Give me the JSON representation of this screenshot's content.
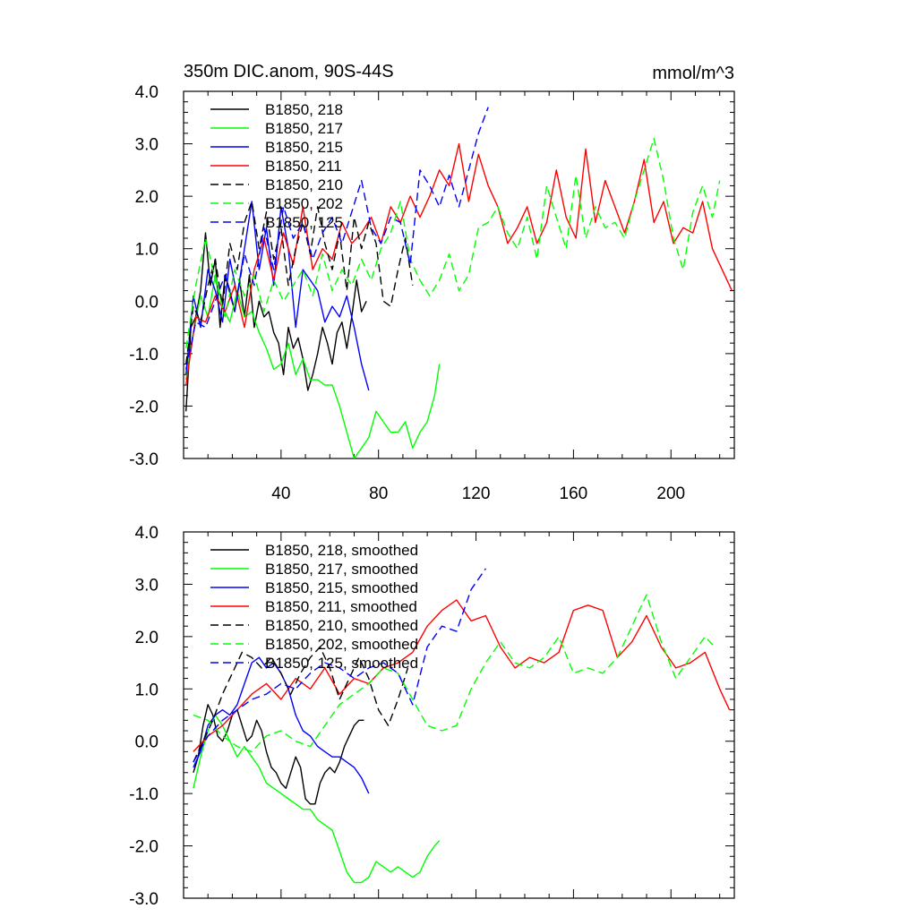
{
  "chart_data": [
    {
      "type": "line",
      "title": "350m DIC.anom, 90S-44S",
      "units": "mmol/m^3",
      "xlim": [
        0,
        226
      ],
      "ylim": [
        -3.0,
        4.0
      ],
      "yticks": [
        "4.0",
        "3.0",
        "2.0",
        "1.0",
        "0.0",
        "-1.0",
        "-2.0",
        "-3.0"
      ],
      "xticks": [
        "40",
        "80",
        "120",
        "160",
        "200"
      ],
      "series": [
        {
          "name": "B1850, 218",
          "color": "#000000",
          "dash": false,
          "x": [
            1,
            3,
            5,
            7,
            9,
            11,
            13,
            15,
            17,
            19,
            21,
            23,
            25,
            27,
            29,
            31,
            33,
            35,
            37,
            39,
            41,
            43,
            45,
            47,
            49,
            51,
            53,
            55,
            57,
            59,
            61,
            63,
            65,
            67,
            69,
            71,
            73,
            75
          ],
          "y": [
            -2.1,
            -0.5,
            -0.3,
            0.2,
            1.3,
            0.3,
            0.8,
            -0.5,
            0.5,
            0.2,
            -0.2,
            0.4,
            -0.3,
            0.5,
            -0.5,
            0.0,
            -0.3,
            -0.2,
            -0.6,
            -0.8,
            -1.4,
            -0.5,
            -0.9,
            -0.7,
            -1.1,
            -1.7,
            -1.4,
            -1.0,
            -0.5,
            -0.8,
            -1.2,
            -0.6,
            -0.4,
            -0.9,
            -0.3,
            0.4,
            -0.2,
            0.0
          ]
        },
        {
          "name": "B1850, 217",
          "color": "#00ff00",
          "dash": false,
          "x": [
            1,
            4,
            7,
            10,
            13,
            16,
            19,
            22,
            25,
            28,
            31,
            34,
            37,
            40,
            43,
            46,
            49,
            52,
            55,
            58,
            61,
            64,
            67,
            70,
            73,
            76,
            79,
            82,
            85,
            88,
            91,
            94,
            97,
            100,
            103,
            105
          ],
          "y": [
            -1.5,
            -0.6,
            0.1,
            -0.3,
            0.5,
            -0.1,
            -0.4,
            0.2,
            -0.3,
            -0.2,
            -0.6,
            -0.9,
            -1.3,
            -1.2,
            -0.8,
            -1.4,
            -1.1,
            -1.5,
            -1.5,
            -1.6,
            -1.6,
            -2.0,
            -2.5,
            -3.0,
            -2.8,
            -2.6,
            -2.1,
            -2.3,
            -2.5,
            -2.5,
            -2.3,
            -2.8,
            -2.5,
            -2.3,
            -1.8,
            -1.2
          ]
        },
        {
          "name": "B1850, 215",
          "color": "#0000ff",
          "dash": false,
          "x": [
            1,
            4,
            7,
            10,
            13,
            16,
            19,
            22,
            25,
            28,
            31,
            34,
            37,
            40,
            43,
            46,
            49,
            52,
            55,
            58,
            61,
            64,
            67,
            70,
            73,
            76
          ],
          "y": [
            -1.4,
            0.1,
            -0.5,
            0.6,
            0.2,
            -0.4,
            0.8,
            0.1,
            1.0,
            1.9,
            0.6,
            1.4,
            0.3,
            1.8,
            1.0,
            -0.5,
            0.6,
            0.4,
            0.2,
            -0.4,
            -0.1,
            -0.3,
            0.1,
            -0.5,
            -1.2,
            -1.7
          ]
        },
        {
          "name": "B1850, 211",
          "color": "#ff0000",
          "dash": false,
          "x": [
            1,
            5,
            9,
            13,
            17,
            21,
            25,
            29,
            33,
            37,
            41,
            45,
            49,
            53,
            57,
            61,
            65,
            69,
            73,
            77,
            81,
            85,
            89,
            93,
            97,
            101,
            105,
            109,
            113,
            117,
            121,
            125,
            129,
            133,
            137,
            141,
            145,
            149,
            153,
            157,
            161,
            165,
            169,
            173,
            177,
            181,
            185,
            189,
            193,
            197,
            201,
            205,
            209,
            213,
            217,
            221,
            225
          ],
          "y": [
            -1.6,
            -0.3,
            -0.4,
            0.1,
            -0.2,
            0.3,
            -0.5,
            0.6,
            1.2,
            0.4,
            1.3,
            0.7,
            1.8,
            0.6,
            1.0,
            0.8,
            1.5,
            1.1,
            1.3,
            1.6,
            1.1,
            1.8,
            1.5,
            2.0,
            1.6,
            2.0,
            2.5,
            2.2,
            3.0,
            1.9,
            2.8,
            2.2,
            1.8,
            1.1,
            1.4,
            1.8,
            1.1,
            1.5,
            2.5,
            1.6,
            1.2,
            2.9,
            1.5,
            2.3,
            1.8,
            1.3,
            1.9,
            2.7,
            1.5,
            1.9,
            1.1,
            1.4,
            1.3,
            1.9,
            1.0,
            0.6,
            0.2
          ]
        },
        {
          "name": "B1850, 210",
          "color": "#000000",
          "dash": true,
          "x": [
            1,
            4,
            7,
            10,
            13,
            16,
            19,
            22,
            25,
            28,
            31,
            34,
            37,
            40,
            43,
            46,
            49,
            52,
            55,
            58,
            61,
            64,
            67,
            70,
            73,
            76,
            79,
            82,
            85,
            88,
            91,
            94
          ],
          "y": [
            -1.2,
            -0.1,
            -0.4,
            0.3,
            0.8,
            -0.1,
            1.1,
            0.6,
            1.5,
            1.9,
            1.0,
            1.7,
            0.8,
            1.4,
            0.3,
            1.0,
            1.5,
            0.9,
            1.8,
            1.1,
            0.6,
            1.3,
            0.2,
            1.6,
            1.0,
            1.5,
            1.1,
            0.0,
            -0.1,
            0.6,
            1.2,
            0.3
          ]
        },
        {
          "name": "B1850, 202",
          "color": "#00ff00",
          "dash": true,
          "x": [
            1,
            5,
            9,
            13,
            17,
            21,
            25,
            29,
            33,
            37,
            41,
            45,
            49,
            53,
            57,
            61,
            65,
            69,
            73,
            77,
            81,
            85,
            89,
            93,
            97,
            101,
            105,
            109,
            113,
            117,
            121,
            125,
            129,
            133,
            137,
            141,
            145,
            149,
            153,
            157,
            161,
            165,
            169,
            173,
            177,
            181,
            185,
            189,
            193,
            197,
            201,
            205,
            209,
            213,
            217,
            220
          ],
          "y": [
            -0.9,
            0.3,
            1.2,
            0.4,
            -0.3,
            0.6,
            0.1,
            0.5,
            -0.2,
            0.4,
            0.0,
            0.3,
            0.6,
            0.1,
            0.9,
            0.2,
            0.6,
            0.3,
            0.8,
            0.4,
            1.0,
            1.3,
            1.9,
            0.8,
            0.4,
            0.1,
            0.4,
            0.9,
            0.2,
            0.5,
            1.4,
            1.5,
            1.8,
            1.3,
            1.0,
            1.6,
            0.8,
            2.2,
            1.6,
            1.0,
            2.4,
            1.2,
            1.8,
            1.4,
            1.5,
            1.2,
            1.9,
            2.5,
            3.1,
            2.3,
            1.2,
            0.6,
            1.7,
            2.2,
            1.6,
            2.3
          ]
        },
        {
          "name": "B1850, 125",
          "color": "#0000ff",
          "dash": true,
          "x": [
            1,
            5,
            9,
            13,
            17,
            21,
            25,
            29,
            33,
            37,
            41,
            45,
            49,
            53,
            57,
            61,
            65,
            69,
            73,
            77,
            81,
            85,
            89,
            93,
            97,
            101,
            105,
            109,
            113,
            117,
            121,
            125
          ],
          "y": [
            -1.3,
            -0.4,
            -0.5,
            0.0,
            0.5,
            -0.2,
            0.9,
            0.3,
            1.4,
            0.6,
            1.8,
            1.2,
            1.5,
            0.8,
            1.3,
            1.6,
            1.1,
            1.7,
            2.3,
            1.4,
            1.1,
            1.6,
            1.5,
            0.7,
            2.5,
            2.2,
            1.8,
            2.4,
            1.8,
            2.5,
            3.2,
            3.7
          ]
        }
      ]
    },
    {
      "type": "line",
      "title": "",
      "units": "",
      "xlim": [
        0,
        226
      ],
      "ylim": [
        -3.0,
        4.0
      ],
      "yticks": [
        "4.0",
        "3.0",
        "2.0",
        "1.0",
        "0.0",
        "-1.0",
        "-2.0",
        "-3.0"
      ],
      "xticks": [],
      "series": [
        {
          "name": "B1850, 218, smoothed",
          "color": "#000000",
          "dash": false,
          "x": [
            4,
            6,
            8,
            10,
            12,
            14,
            16,
            18,
            20,
            22,
            24,
            26,
            28,
            30,
            32,
            34,
            36,
            38,
            40,
            42,
            44,
            46,
            48,
            50,
            52,
            54,
            56,
            58,
            60,
            62,
            64,
            66,
            68,
            70,
            72,
            74
          ],
          "y": [
            -0.6,
            -0.3,
            0.3,
            0.7,
            0.5,
            0.1,
            0.0,
            0.2,
            0.5,
            0.6,
            0.3,
            0.0,
            0.1,
            0.4,
            0.2,
            -0.2,
            -0.5,
            -0.6,
            -0.8,
            -0.9,
            -0.6,
            -0.3,
            -0.5,
            -1.1,
            -1.2,
            -1.2,
            -0.8,
            -0.6,
            -0.5,
            -0.6,
            -0.4,
            -0.1,
            0.1,
            0.3,
            0.4,
            0.4
          ]
        },
        {
          "name": "B1850, 217, smoothed",
          "color": "#00ff00",
          "dash": false,
          "x": [
            4,
            7,
            10,
            13,
            16,
            19,
            22,
            25,
            28,
            31,
            34,
            37,
            40,
            43,
            46,
            49,
            52,
            55,
            58,
            61,
            64,
            67,
            70,
            73,
            76,
            79,
            82,
            85,
            88,
            91,
            94,
            97,
            100,
            103,
            105
          ],
          "y": [
            -0.9,
            -0.3,
            0.2,
            0.5,
            0.3,
            0.0,
            -0.3,
            -0.1,
            -0.3,
            -0.5,
            -0.8,
            -0.9,
            -1.0,
            -1.1,
            -1.2,
            -1.3,
            -1.3,
            -1.5,
            -1.6,
            -1.7,
            -2.1,
            -2.5,
            -2.7,
            -2.7,
            -2.6,
            -2.3,
            -2.4,
            -2.5,
            -2.4,
            -2.5,
            -2.6,
            -2.5,
            -2.2,
            -2.0,
            -1.9
          ]
        },
        {
          "name": "B1850, 215, smoothed",
          "color": "#0000ff",
          "dash": false,
          "x": [
            4,
            7,
            10,
            13,
            16,
            19,
            22,
            25,
            28,
            31,
            34,
            37,
            40,
            43,
            46,
            49,
            52,
            55,
            58,
            61,
            64,
            67,
            70,
            73,
            76
          ],
          "y": [
            -0.5,
            -0.2,
            0.3,
            0.5,
            0.6,
            0.5,
            0.7,
            1.1,
            1.5,
            1.6,
            1.4,
            1.5,
            1.3,
            1.0,
            0.5,
            0.2,
            0.1,
            -0.1,
            -0.2,
            -0.3,
            -0.3,
            -0.4,
            -0.5,
            -0.7,
            -1.0
          ]
        },
        {
          "name": "B1850, 211, smoothed",
          "color": "#ff0000",
          "dash": false,
          "x": [
            4,
            10,
            16,
            22,
            28,
            34,
            40,
            46,
            52,
            58,
            64,
            70,
            76,
            82,
            88,
            94,
            100,
            106,
            112,
            118,
            124,
            130,
            136,
            142,
            148,
            154,
            160,
            166,
            172,
            178,
            184,
            190,
            196,
            202,
            208,
            214,
            220,
            224
          ],
          "y": [
            -0.2,
            0.1,
            0.3,
            0.6,
            0.9,
            1.1,
            0.8,
            1.2,
            1.0,
            1.4,
            0.9,
            1.2,
            1.1,
            1.4,
            1.5,
            1.7,
            2.2,
            2.5,
            2.7,
            2.3,
            2.4,
            1.8,
            1.4,
            1.6,
            1.5,
            1.7,
            2.5,
            2.6,
            2.5,
            1.6,
            1.9,
            2.4,
            1.8,
            1.4,
            1.5,
            1.7,
            1.0,
            0.6
          ]
        },
        {
          "name": "B1850, 210, smoothed",
          "color": "#000000",
          "dash": true,
          "x": [
            4,
            8,
            12,
            16,
            20,
            24,
            28,
            32,
            36,
            40,
            44,
            48,
            52,
            56,
            60,
            64,
            68,
            72,
            76,
            80,
            84,
            88,
            92
          ],
          "y": [
            -0.4,
            0.0,
            0.4,
            0.9,
            1.3,
            1.7,
            1.6,
            1.4,
            1.6,
            1.3,
            0.9,
            1.3,
            1.6,
            1.8,
            1.4,
            0.8,
            1.2,
            1.6,
            1.2,
            0.6,
            0.3,
            0.8,
            1.4
          ]
        },
        {
          "name": "B1850, 202, smoothed",
          "color": "#00ff00",
          "dash": true,
          "x": [
            4,
            10,
            16,
            22,
            28,
            34,
            40,
            46,
            52,
            58,
            64,
            70,
            76,
            82,
            88,
            94,
            100,
            106,
            112,
            118,
            124,
            130,
            136,
            142,
            148,
            154,
            160,
            166,
            172,
            178,
            184,
            190,
            196,
            202,
            208,
            214,
            218
          ],
          "y": [
            0.5,
            0.4,
            0.1,
            -0.1,
            -0.2,
            0.1,
            0.2,
            0.0,
            -0.1,
            0.3,
            0.7,
            0.9,
            1.1,
            1.4,
            1.3,
            0.8,
            0.3,
            0.2,
            0.3,
            1.0,
            1.5,
            1.9,
            1.5,
            1.4,
            1.6,
            2.0,
            1.3,
            1.4,
            1.3,
            1.6,
            2.2,
            2.8,
            1.9,
            1.2,
            1.6,
            2.0,
            1.8
          ]
        },
        {
          "name": "B1850, 125, smoothed",
          "color": "#0000ff",
          "dash": true,
          "x": [
            4,
            10,
            16,
            22,
            28,
            34,
            40,
            46,
            52,
            58,
            64,
            70,
            76,
            82,
            88,
            94,
            100,
            106,
            112,
            118,
            124
          ],
          "y": [
            -0.4,
            0.1,
            0.4,
            0.6,
            0.8,
            0.9,
            1.1,
            1.0,
            1.3,
            1.5,
            1.4,
            1.2,
            1.4,
            1.5,
            1.3,
            0.7,
            1.8,
            2.2,
            2.1,
            2.9,
            3.3
          ]
        }
      ]
    }
  ]
}
